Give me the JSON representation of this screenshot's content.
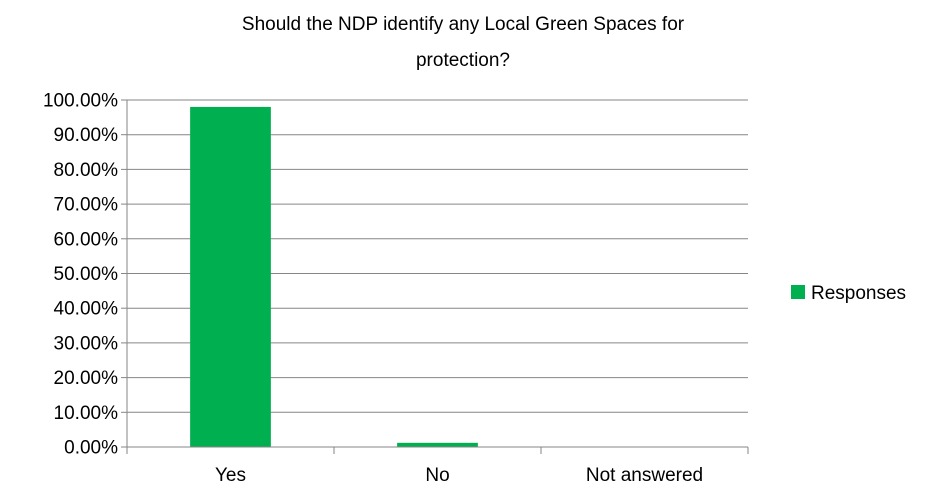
{
  "chart_data": {
    "type": "bar",
    "title": "Should the NDP identify any Local Green Spaces for protection?",
    "xlabel": "",
    "ylabel": "",
    "categories": [
      "Yes",
      "No",
      "Not answered"
    ],
    "series": [
      {
        "name": "Responses",
        "values": [
          98.0,
          1.2,
          0.0
        ],
        "color": "#00B050"
      }
    ],
    "ylim": [
      0,
      100
    ],
    "yticks": [
      0,
      10,
      20,
      30,
      40,
      50,
      60,
      70,
      80,
      90,
      100
    ],
    "ytick_labels": [
      "0.00%",
      "10.00%",
      "20.00%",
      "30.00%",
      "40.00%",
      "50.00%",
      "60.00%",
      "70.00%",
      "80.00%",
      "90.00%",
      "100.00%"
    ],
    "grid": true,
    "legend_position": "right",
    "colors": {
      "gridline": "#868686",
      "axis": "#868686",
      "bar": "#00B050"
    }
  }
}
